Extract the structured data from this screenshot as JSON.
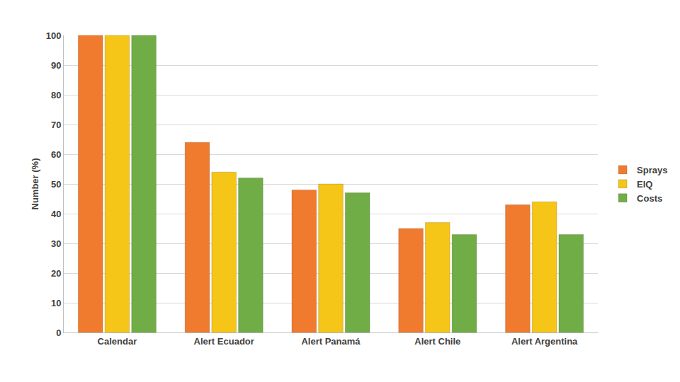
{
  "chart_data": {
    "type": "bar",
    "y_label": "Number (%)",
    "categories": [
      "Calendar",
      "Alert Ecuador",
      "Alert Panamá",
      "Alert Chile",
      "Alert Argentina"
    ],
    "series": [
      {
        "name": "Sprays",
        "color": "#f07b2e",
        "values": [
          100,
          64,
          48,
          35,
          43
        ]
      },
      {
        "name": "EIQ",
        "color": "#f5c518",
        "values": [
          100,
          54,
          50,
          37,
          44
        ]
      },
      {
        "name": "Costs",
        "color": "#70ad47",
        "values": [
          100,
          52,
          47,
          33,
          33
        ]
      }
    ],
    "ylim": [
      0,
      100
    ],
    "yticks": [
      0,
      10,
      20,
      30,
      40,
      50,
      60,
      70,
      80,
      90,
      100
    ],
    "grid": true,
    "legend": "right"
  }
}
